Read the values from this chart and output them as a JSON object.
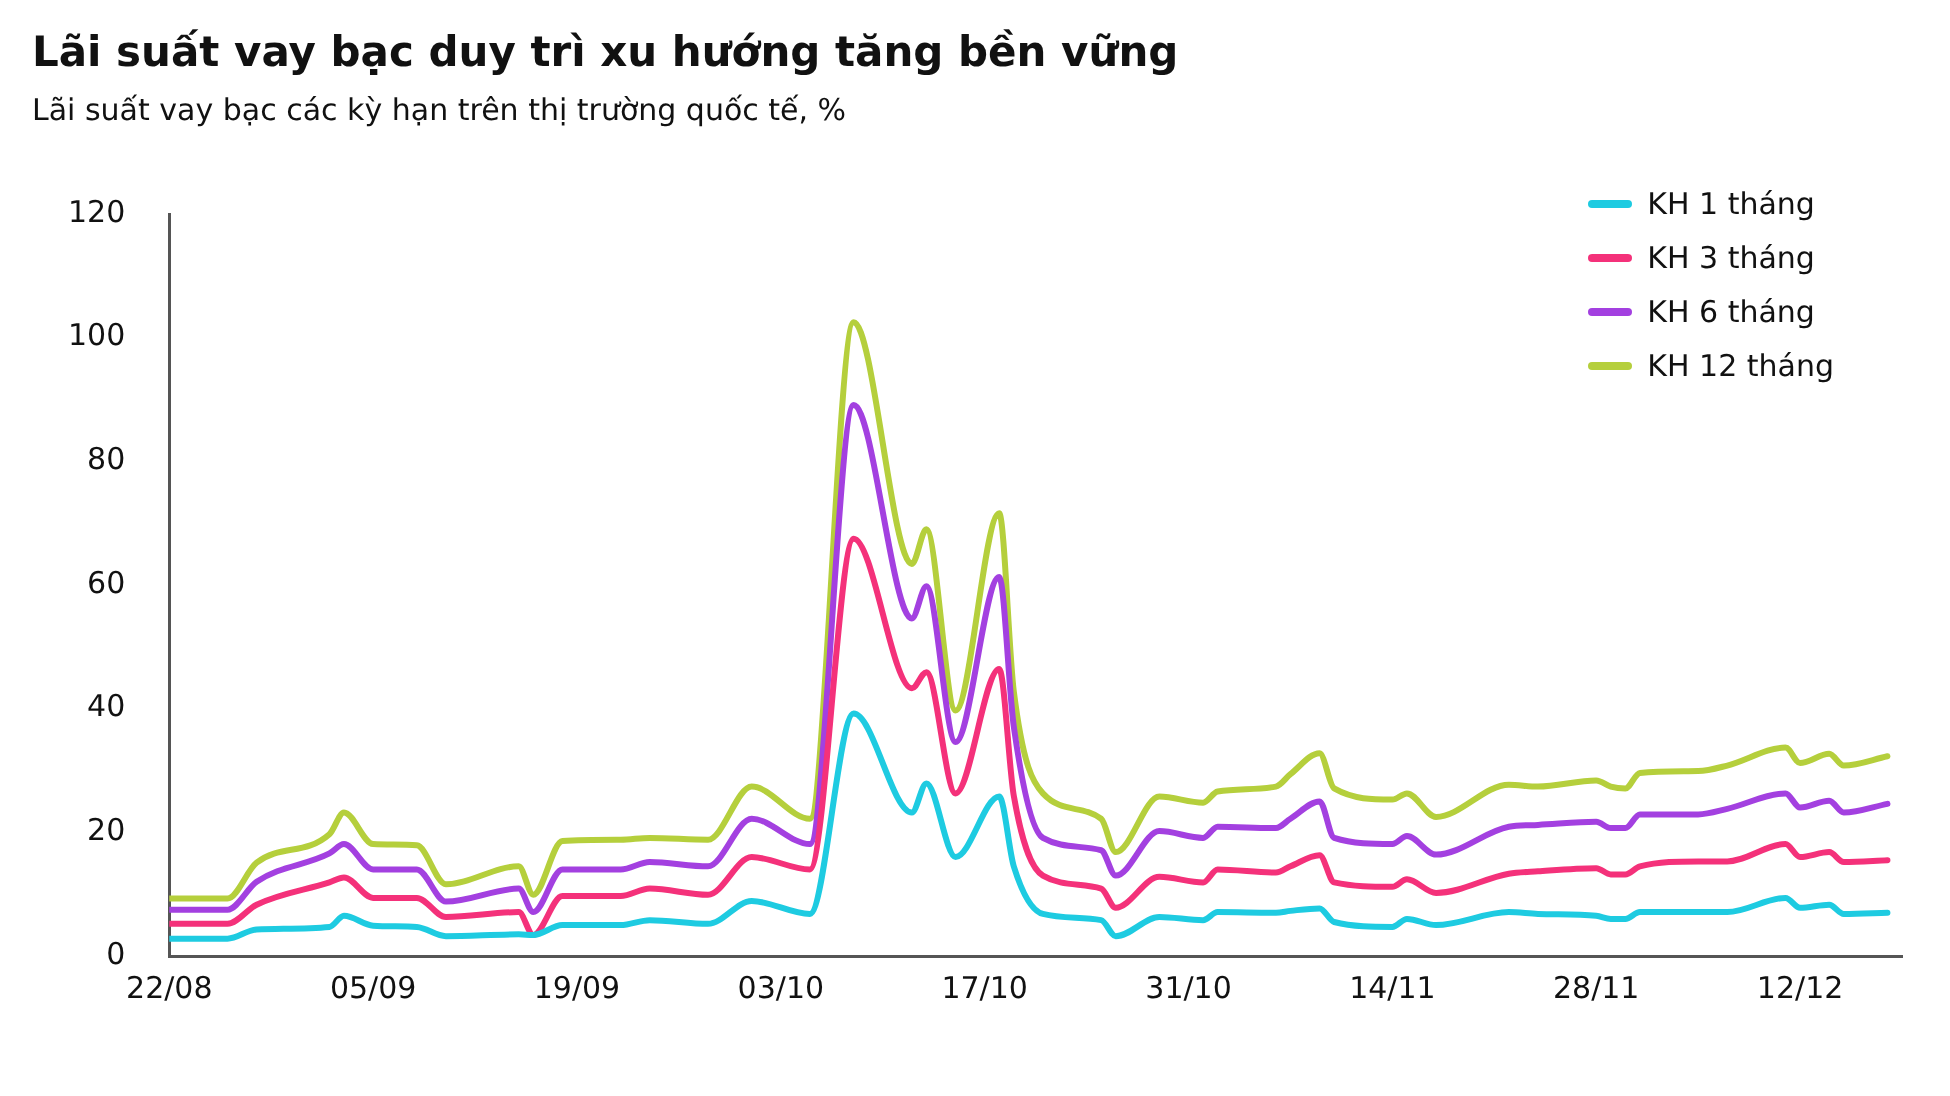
{
  "chart_data": {
    "type": "line",
    "title": "Lãi suất vay bạc duy trì xu hướng tăng bền vững",
    "subtitle": "Lãi suất vay bạc các kỳ hạn trên thị trường quốc tế, %",
    "x": [
      "--08-22",
      "--08-26",
      "--08-28",
      "--09-02",
      "--09-03",
      "--09-05",
      "--09-08",
      "--09-10",
      "--09-15",
      "--09-16",
      "--09-18",
      "--09-22",
      "--09-24",
      "--09-28",
      "--10-01",
      "--10-05",
      "--10-08",
      "--10-12",
      "--10-13",
      "--10-15",
      "--10-18",
      "--10-19",
      "--10-21",
      "--10-25",
      "--10-26",
      "--10-29",
      "--11-01",
      "--11-02",
      "--11-06",
      "--11-07",
      "--11-09",
      "--11-10",
      "--11-14",
      "--11-15",
      "--11-17",
      "--11-22",
      "--11-24",
      "--11-28",
      "--11-29",
      "--11-30",
      "--12-01",
      "--12-05",
      "--12-07",
      "--12-11",
      "--12-12",
      "--12-14",
      "--12-15",
      "--12-18"
    ],
    "series": [
      {
        "name": "KH 1 tháng",
        "color": "#1ecbe1",
        "values": [
          2.8,
          2.8,
          4.3,
          4.7,
          6.5,
          4.9,
          4.7,
          3.2,
          3.5,
          3.4,
          5,
          5,
          5.8,
          5.2,
          8.9,
          6.8,
          39.2,
          23.2,
          27.9,
          16,
          25.8,
          14.5,
          6.8,
          5.8,
          3.2,
          6.3,
          5.8,
          7.1,
          7,
          7.3,
          7.7,
          5.5,
          4.7,
          6,
          5,
          7.1,
          6.8,
          6.5,
          6,
          6,
          7.1,
          7.1,
          7.1,
          9.4,
          7.8,
          8.3,
          6.8,
          7
        ]
      },
      {
        "name": "KH 3 tháng",
        "color": "#f4317a",
        "values": [
          5.2,
          5.2,
          8.3,
          11.9,
          12.7,
          9.4,
          9.4,
          6.3,
          7.1,
          3.4,
          9.7,
          9.7,
          10.9,
          9.9,
          16,
          14,
          67.5,
          43.3,
          45.9,
          26.3,
          46.4,
          25.9,
          13,
          10.9,
          7.8,
          12.8,
          11.9,
          14,
          13.5,
          14.5,
          16.3,
          11.9,
          11.2,
          12.4,
          10.2,
          13.3,
          13.7,
          14.2,
          13.2,
          13.2,
          14.5,
          15.3,
          15.3,
          18.1,
          16,
          16.8,
          15.2,
          15.5
        ]
      },
      {
        "name": "KH 6 tháng",
        "color": "#a340e0",
        "values": [
          7.5,
          7.5,
          12,
          16.6,
          18.1,
          14,
          14,
          8.8,
          10.9,
          7.1,
          14,
          14,
          15.2,
          14.5,
          22.2,
          18.1,
          89.1,
          54.6,
          59.8,
          34.6,
          61.3,
          37.1,
          19.1,
          17.1,
          13,
          20.2,
          19.1,
          20.9,
          20.7,
          22.2,
          25,
          19.1,
          18.1,
          19.4,
          16.4,
          20.9,
          21.2,
          21.7,
          20.7,
          20.7,
          22.9,
          22.9,
          23.8,
          26.3,
          24,
          25.1,
          23.2,
          24.6
        ]
      },
      {
        "name": "KH 12 tháng",
        "color": "#b5cf3c",
        "values": [
          9.3,
          9.3,
          15.1,
          19.7,
          23.2,
          18.1,
          17.9,
          11.6,
          14.5,
          9.9,
          18.6,
          18.8,
          19.1,
          18.8,
          27.4,
          22.2,
          102.5,
          63.4,
          69,
          39.7,
          71.6,
          42.8,
          26.3,
          22.2,
          16.8,
          25.8,
          24.8,
          26.6,
          27.4,
          29.4,
          32.8,
          27.1,
          25.3,
          26.3,
          22.5,
          27.7,
          27.4,
          28.4,
          27.4,
          27.1,
          29.6,
          29.9,
          30.8,
          33.7,
          31.2,
          32.7,
          30.8,
          32.3
        ]
      }
    ],
    "xlim": [
      "--08-22",
      "--12-19"
    ],
    "xticks": [
      {
        "value": "--08-22",
        "label": "22/08"
      },
      {
        "value": "--09-05",
        "label": "05/09"
      },
      {
        "value": "--09-19",
        "label": "19/09"
      },
      {
        "value": "--10-03",
        "label": "03/10"
      },
      {
        "value": "--10-17",
        "label": "17/10"
      },
      {
        "value": "--10-31",
        "label": "31/10"
      },
      {
        "value": "--11-14",
        "label": "14/11"
      },
      {
        "value": "--11-28",
        "label": "28/11"
      },
      {
        "value": "--12-12",
        "label": "12/12"
      }
    ],
    "ylim": [
      0,
      120
    ],
    "yticks": [
      0,
      20,
      40,
      60,
      80,
      100,
      120
    ],
    "grid": false,
    "legend": "top right",
    "marker": "none",
    "line_style": "solid"
  }
}
